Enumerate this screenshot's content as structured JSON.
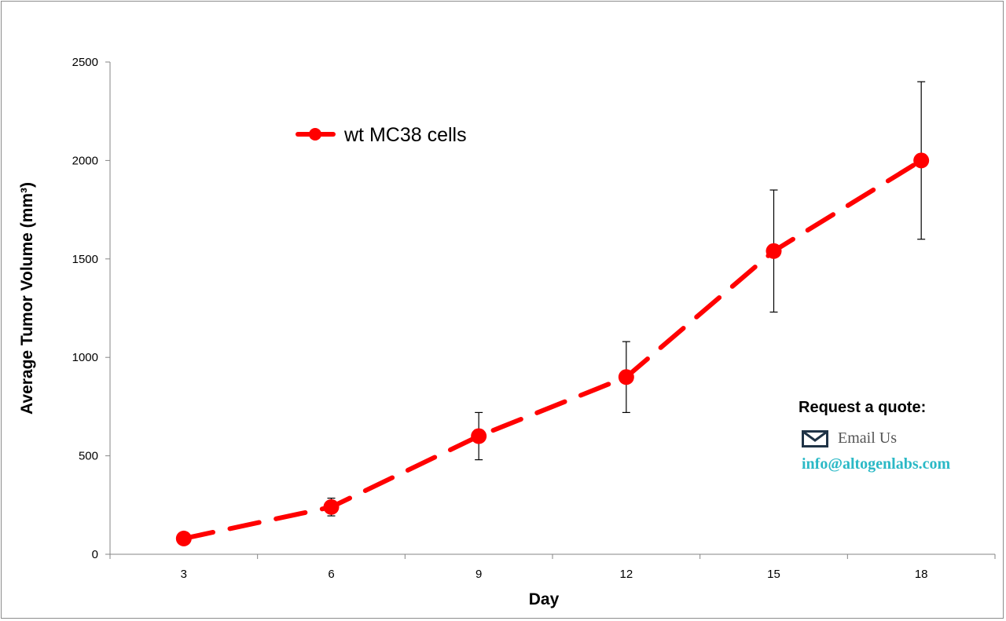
{
  "chart_data": {
    "type": "line",
    "title": "",
    "xlabel": "Day",
    "ylabel": "Average Tumor Volume (mm³)",
    "categories": [
      "3",
      "6",
      "9",
      "12",
      "15",
      "18"
    ],
    "ylim": [
      0,
      2500
    ],
    "yticks": [
      0,
      500,
      1000,
      1500,
      2000,
      2500
    ],
    "grid": false,
    "legend_position": "top-left",
    "series": [
      {
        "name": "wt MC38 cells",
        "color": "#ff0000",
        "line_style": "dashed",
        "marker": "circle",
        "values": [
          80,
          240,
          600,
          900,
          1540,
          2000
        ],
        "error_low": [
          80,
          195,
          480,
          720,
          1230,
          1600
        ],
        "error_high": [
          80,
          285,
          720,
          1080,
          1850,
          2400
        ]
      }
    ]
  },
  "quote": {
    "title": "Request a quote:",
    "email_label": "Email Us",
    "email_address": "info@altogenlabs.com",
    "email_icon": "envelope-icon",
    "accent_color": "#2bb9c6"
  }
}
